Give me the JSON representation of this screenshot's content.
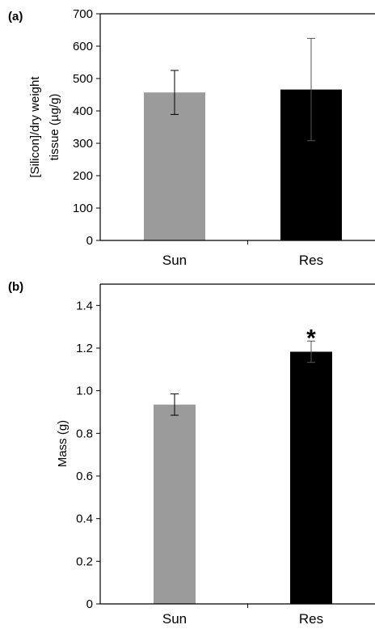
{
  "chart_data": [
    {
      "type": "bar",
      "panel_label": "(a)",
      "categories": [
        "Sun",
        "Res"
      ],
      "values": [
        457,
        466
      ],
      "error": [
        68,
        158
      ],
      "colors": [
        "#9b9b9b",
        "#000000"
      ],
      "ylabel_lines": [
        "[Silicon]/dry weight",
        "tissue (µg/g)"
      ],
      "ylim": [
        0,
        700
      ],
      "yticks": [
        0,
        100,
        200,
        300,
        400,
        500,
        600,
        700
      ],
      "ytick_labels": [
        "0",
        "100",
        "200",
        "300",
        "400",
        "500",
        "600",
        "700"
      ],
      "annotations": [
        "",
        ""
      ],
      "grid": false
    },
    {
      "type": "bar",
      "panel_label": "(b)",
      "categories": [
        "Sun",
        "Res"
      ],
      "values": [
        0.935,
        1.183
      ],
      "error": [
        0.05,
        0.05
      ],
      "colors": [
        "#9b9b9b",
        "#000000"
      ],
      "ylabel_lines": [
        "Mass (g)"
      ],
      "ylim": [
        0,
        1.5
      ],
      "yticks": [
        0,
        0.2,
        0.4,
        0.6,
        0.8,
        1.0,
        1.2,
        1.4
      ],
      "ytick_labels": [
        "0",
        "0.2",
        "0.4",
        "0.6",
        "0.8",
        "1.0",
        "1.2",
        "1.4"
      ],
      "annotations": [
        "",
        "*"
      ],
      "grid": false
    }
  ]
}
